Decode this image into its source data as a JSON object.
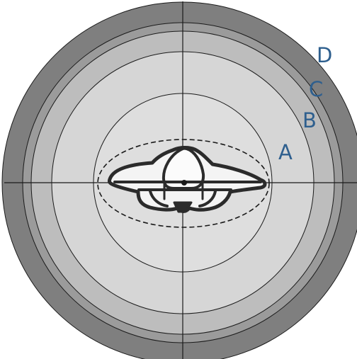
{
  "labels": {
    "a": "A",
    "b": "B",
    "c": "C",
    "d": "D"
  },
  "colors": {
    "background": "#ffffff",
    "ring_d": "#7f7f7f",
    "ring_c": "#9b9b9b",
    "ring_b": "#bdbdbd",
    "ring_a": "#d6d6d6",
    "center_disk": "#dedede",
    "label_text": "#2e5f8e",
    "lines": "#1a1a1a",
    "embryo_stroke": "#2b2b2b",
    "embryo_fill": "#f4f4f4"
  }
}
